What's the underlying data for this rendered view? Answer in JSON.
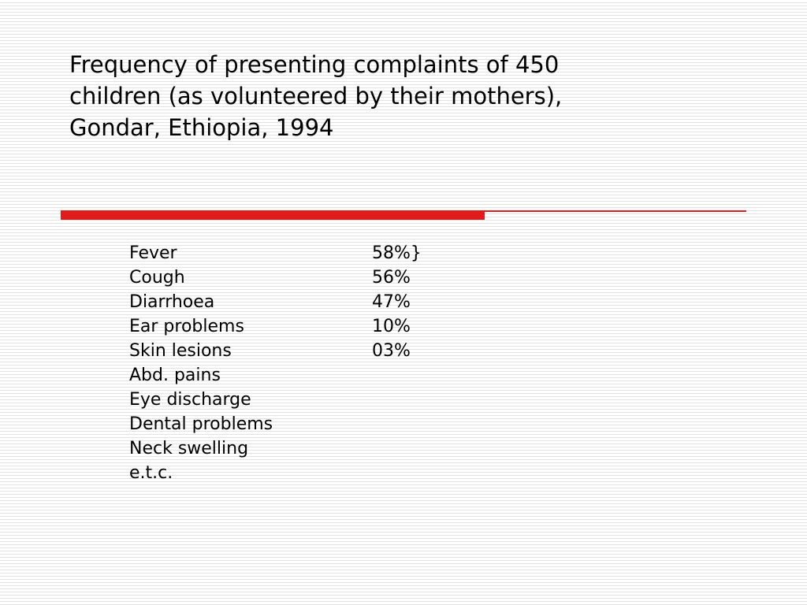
{
  "title": {
    "lines": [
      "Frequency of presenting complaints of 450",
      "children (as volunteered by their mothers),",
      "Gondar, Ethiopia, 1994"
    ]
  },
  "accent_color": "#e01b1b",
  "complaints": [
    {
      "name": "Fever",
      "frequency": "58%}"
    },
    {
      "name": "Cough",
      "frequency": "56%"
    },
    {
      "name": "Diarrhoea",
      "frequency": "47%"
    },
    {
      "name": "Ear problems",
      "frequency": "10%"
    },
    {
      "name": "Skin lesions",
      "frequency": "03%"
    },
    {
      "name": "Abd. pains",
      "frequency": ""
    },
    {
      "name": "Eye discharge",
      "frequency": ""
    },
    {
      "name": "Dental problems",
      "frequency": ""
    },
    {
      "name": "Neck swelling",
      "frequency": ""
    },
    {
      "name": "e.t.c.",
      "frequency": ""
    }
  ]
}
